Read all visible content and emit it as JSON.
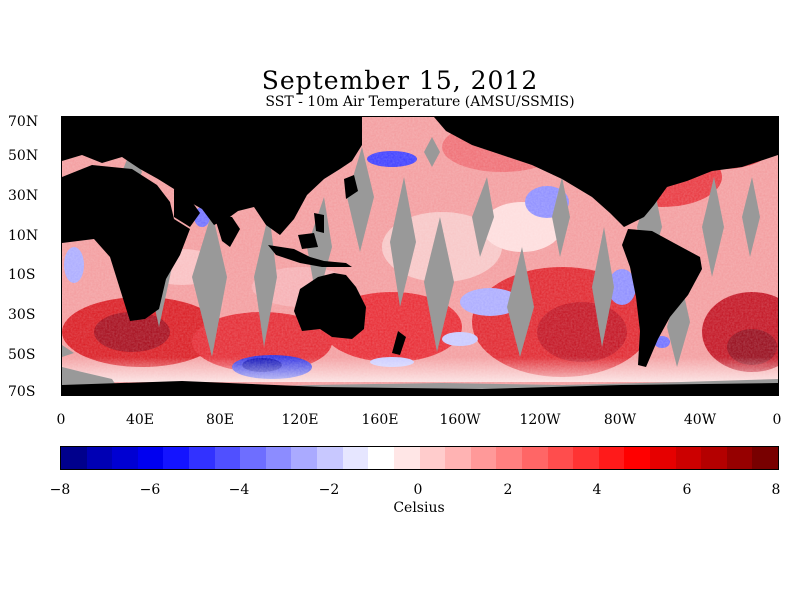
{
  "header": {
    "date": "September 15, 2012",
    "product": "SST - 10m Air Temperature (AMSU/SSMIS)"
  },
  "map": {
    "lat_labels": [
      "70N",
      "50N",
      "30N",
      "10N",
      "10S",
      "30S",
      "50S",
      "70S"
    ],
    "lon_labels": [
      "0",
      "40E",
      "80E",
      "120E",
      "160E",
      "160W",
      "120W",
      "80W",
      "40W",
      "0"
    ],
    "colors": {
      "land": "#000000",
      "no_data": "#999999",
      "warm": "#e8202a",
      "cold": "#2a2ae0",
      "neutral": "#ffffff"
    }
  },
  "colorbar": {
    "tick_labels": [
      "−8",
      "−6",
      "−4",
      "−2",
      "0",
      "2",
      "4",
      "6",
      "8"
    ],
    "unit": "Celsius",
    "range": [
      -8,
      8
    ],
    "colors": [
      "#00008c",
      "#0000b4",
      "#0000d2",
      "#0000f0",
      "#1414ff",
      "#3232ff",
      "#5050ff",
      "#6e6eff",
      "#8c8cff",
      "#aaaaff",
      "#c8c8ff",
      "#e6e6ff",
      "#ffffff",
      "#ffe6e6",
      "#ffcccc",
      "#ffb3b3",
      "#ff9999",
      "#ff8080",
      "#ff6666",
      "#ff4d4d",
      "#ff3333",
      "#ff1a1a",
      "#ff0000",
      "#e60000",
      "#cc0000",
      "#b40000",
      "#960000",
      "#780000"
    ]
  }
}
